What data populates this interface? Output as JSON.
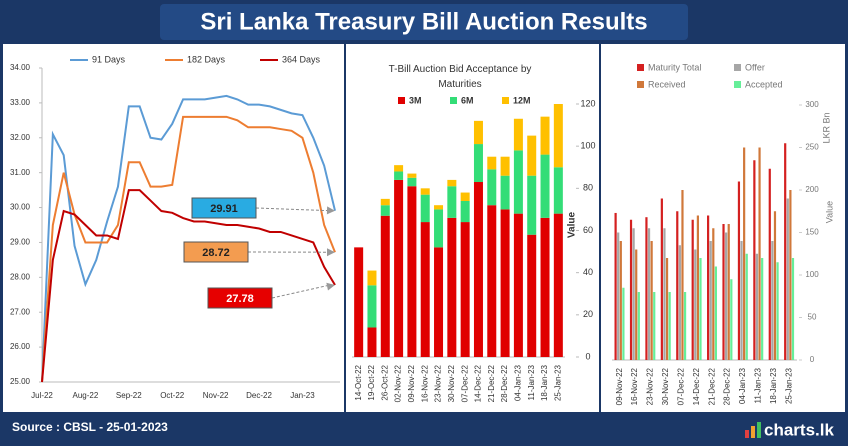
{
  "header": {
    "title": "Sri Lanka Treasury Bill Auction Results"
  },
  "footer": {
    "source": "Source : CBSL - 25-01-2023",
    "logo": "charts.lk"
  },
  "chart_data": [
    {
      "type": "line",
      "categories": [
        "Jul-22",
        null,
        null,
        null,
        "Aug-22",
        null,
        null,
        null,
        "Sep-22",
        null,
        null,
        null,
        "Oct-22",
        null,
        null,
        null,
        "Nov-22",
        null,
        null,
        null,
        "Dec-22",
        null,
        null,
        null,
        "Jan-23",
        null,
        null,
        null
      ],
      "series": [
        {
          "name": "91 Days",
          "color": "#5b9bd5",
          "values": [
            25.0,
            32.1,
            31.5,
            28.9,
            27.8,
            28.5,
            29.6,
            30.6,
            32.9,
            32.9,
            32.0,
            31.95,
            32.4,
            33.1,
            33.1,
            33.1,
            33.15,
            33.2,
            33.1,
            32.95,
            32.95,
            32.9,
            32.8,
            32.7,
            32.65,
            32.0,
            31.2,
            29.91
          ]
        },
        {
          "name": "182 Days",
          "color": "#ed7d31",
          "values": [
            25.0,
            29.5,
            31.0,
            29.8,
            29.0,
            29.0,
            29.0,
            29.5,
            31.3,
            31.3,
            30.6,
            30.6,
            30.65,
            32.6,
            32.6,
            32.6,
            32.6,
            32.6,
            32.5,
            32.3,
            32.3,
            32.3,
            32.25,
            32.2,
            32.0,
            31.0,
            29.5,
            28.72
          ]
        },
        {
          "name": "364 Days",
          "color": "#c00000",
          "values": [
            25.0,
            28.5,
            29.9,
            29.8,
            29.5,
            29.2,
            29.2,
            29.1,
            30.5,
            30.5,
            30.2,
            29.9,
            29.85,
            29.7,
            29.6,
            29.6,
            29.55,
            29.5,
            29.5,
            29.45,
            29.4,
            29.3,
            29.3,
            29.2,
            29.1,
            29.0,
            28.3,
            27.78
          ]
        }
      ],
      "ylim": [
        25,
        34
      ],
      "yticks": [
        {
          "value": 25,
          "label": "25.00"
        },
        {
          "value": 26,
          "label": "26.00"
        },
        {
          "value": 27,
          "label": "27.00"
        },
        {
          "value": 28,
          "label": "28.00"
        },
        {
          "value": 29,
          "label": "29.00"
        },
        {
          "value": 30,
          "label": "30.00"
        },
        {
          "value": 31,
          "label": "31.00"
        },
        {
          "value": 32,
          "label": "32.00"
        },
        {
          "value": 33,
          "label": "33.00"
        },
        {
          "value": 34,
          "label": "34.00"
        }
      ],
      "grid": false,
      "annotations": [
        {
          "label": "29.91",
          "color": "#29abe2"
        },
        {
          "label": "28.72",
          "color": "#f39c50"
        },
        {
          "label": "27.78",
          "color": "#e60000"
        }
      ]
    },
    {
      "type": "stacked_bar",
      "title": "T-Bill Auction Bid Acceptance by Maturities",
      "y_label": "Value",
      "categories": [
        "14-Oct-22",
        "19-Oct-22",
        "26-Oct-22",
        "02-Nov-22",
        "09-Nov-22",
        "16-Nov-22",
        "23-Nov-22",
        "30-Nov-22",
        "07-Dec-22",
        "14-Dec-22",
        "21-Dec-22",
        "28-Dec-22",
        "04-Jan-23",
        "11-Jan-23",
        "18-Jan-23",
        "25-Jan-23"
      ],
      "series": [
        {
          "name": "3M",
          "color": "#e00000",
          "values": [
            52,
            14,
            67,
            84,
            81,
            64,
            52,
            66,
            64,
            83,
            72,
            70,
            68,
            58,
            66,
            68
          ]
        },
        {
          "name": "6M",
          "color": "#33dd77",
          "values": [
            0,
            20,
            5,
            4,
            4,
            13,
            18,
            15,
            10,
            18,
            17,
            16,
            30,
            28,
            30,
            22
          ]
        },
        {
          "name": "12M",
          "color": "#ffc000",
          "values": [
            0,
            7,
            3,
            3,
            2,
            3,
            2,
            3,
            4,
            11,
            6,
            9,
            15,
            19,
            18,
            30
          ]
        }
      ],
      "ylim": [
        0,
        120
      ],
      "yticks": [
        0,
        20,
        40,
        60,
        80,
        100,
        120
      ],
      "grid": false
    },
    {
      "type": "grouped_bar",
      "y_labels": [
        "LKR Bn",
        "Value"
      ],
      "categories": [
        "09-Nov-22",
        "16-Nov-22",
        "23-Nov-22",
        "30-Nov-22",
        "07-Dec-22",
        "14-Dec-22",
        "21-Dec-22",
        "28-Dec-22",
        "04-Jan-23",
        "11-Jan-23",
        "18-Jan-23",
        "25-Jan-23"
      ],
      "series": [
        {
          "name": "Maturity Total",
          "color": "#d42020",
          "values": [
            173,
            165,
            168,
            190,
            175,
            165,
            170,
            160,
            210,
            235,
            225,
            255
          ]
        },
        {
          "name": "Offer",
          "color": "#a6a6a6",
          "values": [
            150,
            155,
            155,
            155,
            135,
            130,
            140,
            150,
            140,
            125,
            140,
            190
          ]
        },
        {
          "name": "Received",
          "color": "#d0783a",
          "values": [
            140,
            130,
            140,
            120,
            200,
            170,
            155,
            160,
            250,
            250,
            175,
            200
          ]
        },
        {
          "name": "Accepted",
          "color": "#66ee99",
          "values": [
            85,
            80,
            80,
            80,
            80,
            120,
            110,
            95,
            125,
            120,
            115,
            120
          ]
        }
      ],
      "ylim": [
        0,
        300
      ],
      "yticks": [
        0,
        50,
        100,
        150,
        200,
        250,
        300
      ],
      "grid": false
    }
  ]
}
